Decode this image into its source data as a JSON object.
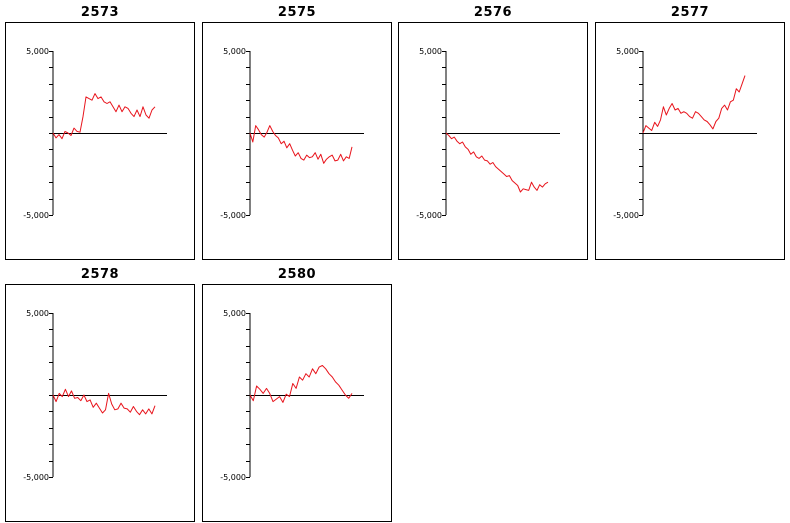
{
  "colors": {
    "series": "#e8141c",
    "axis": "#000000",
    "background": "#ffffff"
  },
  "chart_data": [
    {
      "type": "line",
      "title": "2573",
      "ylim": [
        -5000,
        5000
      ],
      "y_ticks": [
        -5000,
        -4000,
        -3000,
        -2000,
        -1000,
        0,
        1000,
        2000,
        3000,
        4000,
        5000
      ],
      "y_tick_labels": [
        "-5,000",
        "5,000"
      ],
      "values": [
        0,
        -300,
        -100,
        -350,
        100,
        0,
        -150,
        300,
        100,
        50,
        1000,
        2200,
        2100,
        2000,
        2400,
        2100,
        2200,
        1900,
        1800,
        1900,
        1600,
        1300,
        1700,
        1300,
        1600,
        1500,
        1200,
        1000,
        1400,
        1000,
        1600,
        1100,
        900,
        1400,
        1600
      ]
    },
    {
      "type": "line",
      "title": "2575",
      "ylim": [
        -5000,
        5000
      ],
      "y_ticks": [
        -5000,
        -4000,
        -3000,
        -2000,
        -1000,
        0,
        1000,
        2000,
        3000,
        4000,
        5000
      ],
      "y_tick_labels": [
        "-5,000",
        "5,000"
      ],
      "values": [
        0,
        -550,
        450,
        200,
        -100,
        -250,
        50,
        450,
        100,
        -150,
        -300,
        -650,
        -500,
        -900,
        -650,
        -1050,
        -1400,
        -1200,
        -1550,
        -1650,
        -1350,
        -1500,
        -1450,
        -1200,
        -1600,
        -1300,
        -1850,
        -1600,
        -1450,
        -1350,
        -1700,
        -1650,
        -1300,
        -1700,
        -1450,
        -1550,
        -850
      ]
    },
    {
      "type": "line",
      "title": "2576",
      "ylim": [
        -5000,
        5000
      ],
      "y_ticks": [
        -5000,
        -4000,
        -3000,
        -2000,
        -1000,
        0,
        1000,
        2000,
        3000,
        4000,
        5000
      ],
      "y_tick_labels": [
        "-5,000",
        "5,000"
      ],
      "values": [
        0,
        -150,
        -350,
        -250,
        -500,
        -650,
        -550,
        -850,
        -1000,
        -1300,
        -1150,
        -1450,
        -1550,
        -1400,
        -1650,
        -1700,
        -1900,
        -1800,
        -2050,
        -2200,
        -2350,
        -2500,
        -2650,
        -2600,
        -2900,
        -3050,
        -3200,
        -3600,
        -3400,
        -3450,
        -3500,
        -3000,
        -3300,
        -3500,
        -3150,
        -3300,
        -3100,
        -3000
      ]
    },
    {
      "type": "line",
      "title": "2577",
      "ylim": [
        -5000,
        5000
      ],
      "y_ticks": [
        -5000,
        -4000,
        -3000,
        -2000,
        -1000,
        0,
        1000,
        2000,
        3000,
        4000,
        5000
      ],
      "y_tick_labels": [
        "-5,000",
        "5,000"
      ],
      "values": [
        0,
        450,
        300,
        150,
        650,
        400,
        800,
        1600,
        1100,
        1500,
        1800,
        1400,
        1500,
        1200,
        1300,
        1200,
        1000,
        900,
        1300,
        1200,
        1000,
        800,
        700,
        500,
        250,
        700,
        900,
        1500,
        1700,
        1400,
        1900,
        2000,
        2700,
        2500,
        3000,
        3500
      ]
    },
    {
      "type": "line",
      "title": "2578",
      "ylim": [
        -5000,
        5000
      ],
      "y_ticks": [
        -5000,
        -4000,
        -3000,
        -2000,
        -1000,
        0,
        1000,
        2000,
        3000,
        4000,
        5000
      ],
      "y_tick_labels": [
        "-5,000",
        "5,000"
      ],
      "values": [
        0,
        -400,
        100,
        -100,
        350,
        -100,
        250,
        -200,
        -150,
        -350,
        0,
        -400,
        -300,
        -750,
        -500,
        -800,
        -1100,
        -900,
        100,
        -550,
        -900,
        -850,
        -500,
        -800,
        -850,
        -1050,
        -700,
        -1000,
        -1200,
        -900,
        -1150,
        -850,
        -1150,
        -650
      ]
    },
    {
      "type": "line",
      "title": "2580",
      "ylim": [
        -5000,
        5000
      ],
      "y_ticks": [
        -5000,
        -4000,
        -3000,
        -2000,
        -1000,
        0,
        1000,
        2000,
        3000,
        4000,
        5000
      ],
      "y_tick_labels": [
        "-5,000",
        "5,000"
      ],
      "values": [
        0,
        -350,
        550,
        350,
        100,
        400,
        100,
        -400,
        -250,
        -100,
        -450,
        50,
        -100,
        700,
        400,
        1100,
        900,
        1300,
        1100,
        1600,
        1300,
        1700,
        1800,
        1600,
        1300,
        1100,
        800,
        600,
        300,
        0,
        -200,
        100
      ]
    }
  ]
}
